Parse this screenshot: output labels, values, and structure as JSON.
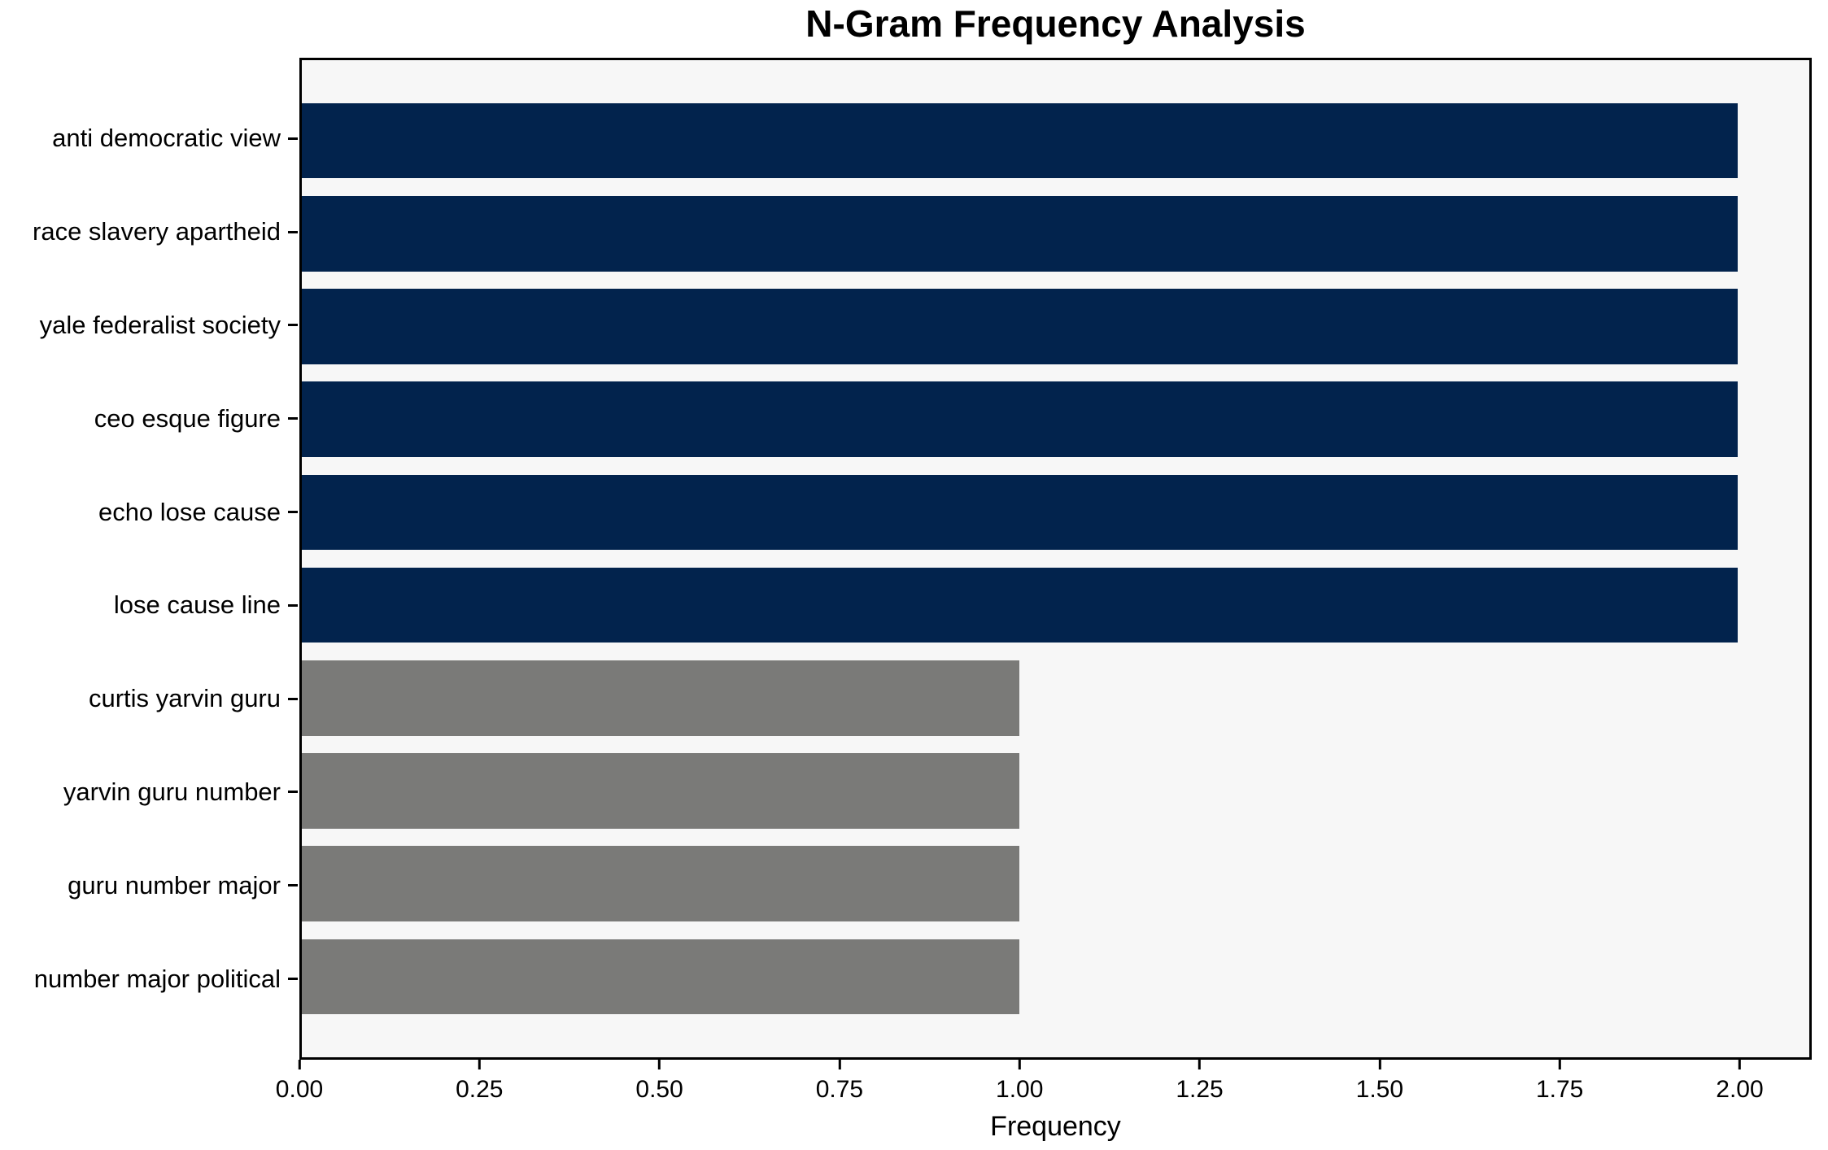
{
  "chart_data": {
    "type": "bar",
    "orientation": "horizontal",
    "title": "N-Gram Frequency Analysis",
    "xlabel": "Frequency",
    "ylabel": "",
    "categories": [
      "anti democratic view",
      "race slavery apartheid",
      "yale federalist society",
      "ceo esque figure",
      "echo lose cause",
      "lose cause line",
      "curtis yarvin guru",
      "yarvin guru number",
      "guru number major",
      "number major political"
    ],
    "values": [
      2,
      2,
      2,
      2,
      2,
      2,
      1,
      1,
      1,
      1
    ],
    "bar_colors": [
      "#02234d",
      "#02234d",
      "#02234d",
      "#02234d",
      "#02234d",
      "#02234d",
      "#7a7a78",
      "#7a7a78",
      "#7a7a78",
      "#7a7a78"
    ],
    "xlim": [
      0,
      2.1
    ],
    "xticks": [
      0,
      0.25,
      0.5,
      0.75,
      1.0,
      1.25,
      1.5,
      1.75,
      2.0
    ],
    "xtick_labels": [
      "0.00",
      "0.25",
      "0.50",
      "0.75",
      "1.00",
      "1.25",
      "1.50",
      "1.75",
      "2.00"
    ],
    "grid": false,
    "legend_position": "none",
    "plot_background": "#f7f7f7",
    "spine_color": "#000000"
  }
}
